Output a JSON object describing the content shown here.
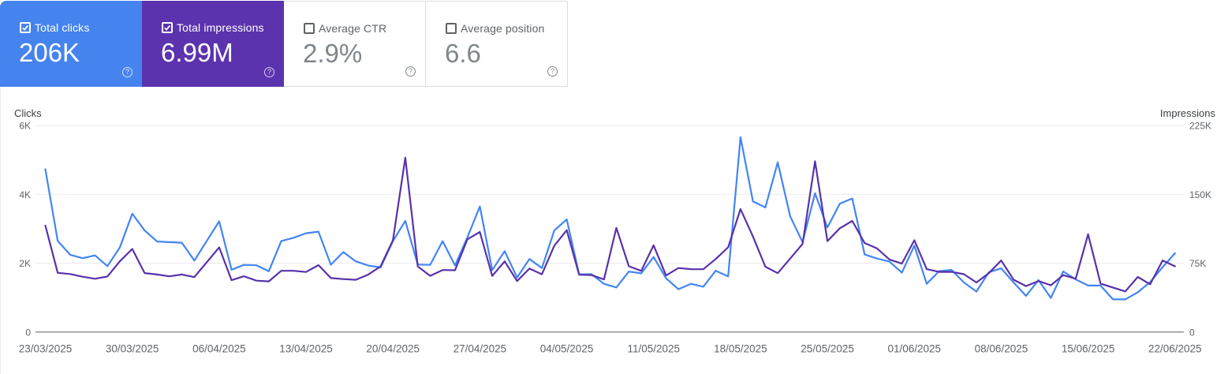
{
  "cards": [
    {
      "label": "Total clicks",
      "value": "206K",
      "checked": true,
      "bg": "#4583ef",
      "help_label": "?"
    },
    {
      "label": "Total impressions",
      "value": "6.99M",
      "checked": true,
      "bg": "#5c33ae",
      "help_label": "?"
    },
    {
      "label": "Average CTR",
      "value": "2.9%",
      "checked": false,
      "bg": "#ffffff",
      "help_label": "?"
    },
    {
      "label": "Average position",
      "value": "6.6",
      "checked": false,
      "bg": "#ffffff",
      "help_label": "?"
    }
  ],
  "chart_data": {
    "type": "line",
    "x": [
      "23/03/2025",
      "24/03/2025",
      "25/03/2025",
      "26/03/2025",
      "27/03/2025",
      "28/03/2025",
      "29/03/2025",
      "30/03/2025",
      "31/03/2025",
      "01/04/2025",
      "02/04/2025",
      "03/04/2025",
      "04/04/2025",
      "05/04/2025",
      "06/04/2025",
      "07/04/2025",
      "08/04/2025",
      "09/04/2025",
      "10/04/2025",
      "11/04/2025",
      "12/04/2025",
      "13/04/2025",
      "14/04/2025",
      "15/04/2025",
      "16/04/2025",
      "17/04/2025",
      "18/04/2025",
      "19/04/2025",
      "20/04/2025",
      "21/04/2025",
      "22/04/2025",
      "23/04/2025",
      "24/04/2025",
      "25/04/2025",
      "26/04/2025",
      "27/04/2025",
      "28/04/2025",
      "29/04/2025",
      "30/04/2025",
      "01/05/2025",
      "02/05/2025",
      "03/05/2025",
      "04/05/2025",
      "05/05/2025",
      "06/05/2025",
      "07/05/2025",
      "08/05/2025",
      "09/05/2025",
      "10/05/2025",
      "11/05/2025",
      "12/05/2025",
      "13/05/2025",
      "14/05/2025",
      "15/05/2025",
      "16/05/2025",
      "17/05/2025",
      "18/05/2025",
      "19/05/2025",
      "20/05/2025",
      "21/05/2025",
      "22/05/2025",
      "23/05/2025",
      "24/05/2025",
      "25/05/2025",
      "26/05/2025",
      "27/05/2025",
      "28/05/2025",
      "29/05/2025",
      "30/05/2025",
      "31/05/2025",
      "01/06/2025",
      "02/06/2025",
      "03/06/2025",
      "04/06/2025",
      "05/06/2025",
      "06/06/2025",
      "07/06/2025",
      "08/06/2025",
      "09/06/2025",
      "10/06/2025",
      "11/06/2025",
      "12/06/2025",
      "13/06/2025",
      "14/06/2025",
      "15/06/2025",
      "16/06/2025",
      "17/06/2025",
      "18/06/2025",
      "19/06/2025",
      "20/06/2025",
      "21/06/2025",
      "22/06/2025"
    ],
    "x_tick_every": 7,
    "series": [
      {
        "name": "Clicks",
        "axis": "left",
        "color": "#4285f4",
        "values": [
          4730,
          2645,
          2245,
          2145,
          2225,
          1915,
          2455,
          3435,
          2950,
          2630,
          2610,
          2595,
          2075,
          2645,
          3215,
          1810,
          1950,
          1940,
          1765,
          2640,
          2740,
          2870,
          2915,
          1955,
          2325,
          2055,
          1935,
          1875,
          2640,
          3230,
          1960,
          1950,
          2640,
          1935,
          2750,
          3650,
          1800,
          2350,
          1585,
          2120,
          1860,
          2950,
          3270,
          1675,
          1680,
          1400,
          1295,
          1755,
          1705,
          2180,
          1560,
          1245,
          1400,
          1315,
          1780,
          1615,
          5660,
          3795,
          3620,
          4930,
          3360,
          2610,
          4030,
          3040,
          3730,
          3880,
          2250,
          2135,
          2045,
          1725,
          2510,
          1400,
          1770,
          1805,
          1440,
          1175,
          1735,
          1850,
          1440,
          1050,
          1510,
          990,
          1760,
          1530,
          1350,
          1350,
          950,
          950,
          1155,
          1450,
          1885,
          2290
        ]
      },
      {
        "name": "Impressions",
        "axis": "right",
        "color": "#5832aa",
        "values": [
          116000,
          64500,
          63200,
          60300,
          58000,
          60500,
          77000,
          90500,
          64200,
          62700,
          60700,
          62700,
          59800,
          76000,
          92200,
          56500,
          60800,
          56000,
          55200,
          66700,
          66700,
          65400,
          72900,
          58800,
          57700,
          56900,
          62500,
          71400,
          100000,
          190000,
          71500,
          61200,
          67600,
          67300,
          101000,
          109000,
          61100,
          77000,
          55500,
          69100,
          62900,
          94000,
          111000,
          62400,
          62000,
          57300,
          113500,
          71700,
          66600,
          94500,
          61600,
          69700,
          68500,
          68400,
          79500,
          92200,
          134000,
          104000,
          71200,
          64100,
          80000,
          96000,
          186000,
          99000,
          113000,
          121000,
          97000,
          91000,
          79000,
          74500,
          100000,
          68500,
          65500,
          65500,
          63000,
          54000,
          64100,
          78000,
          57000,
          50000,
          55500,
          51000,
          62000,
          58000,
          106500,
          52800,
          48500,
          44300,
          60000,
          52000,
          78000,
          71600
        ]
      }
    ],
    "left_axis": {
      "title": "Clicks",
      "tick_labels": [
        "0",
        "2K",
        "4K",
        "6K"
      ],
      "ylim": [
        0,
        6000
      ]
    },
    "right_axis": {
      "title": "Impressions",
      "tick_labels": [
        "0",
        "75K",
        "150K",
        "225K"
      ],
      "ylim": [
        0,
        225000
      ]
    },
    "grid": "horizontal",
    "legend": "none"
  }
}
